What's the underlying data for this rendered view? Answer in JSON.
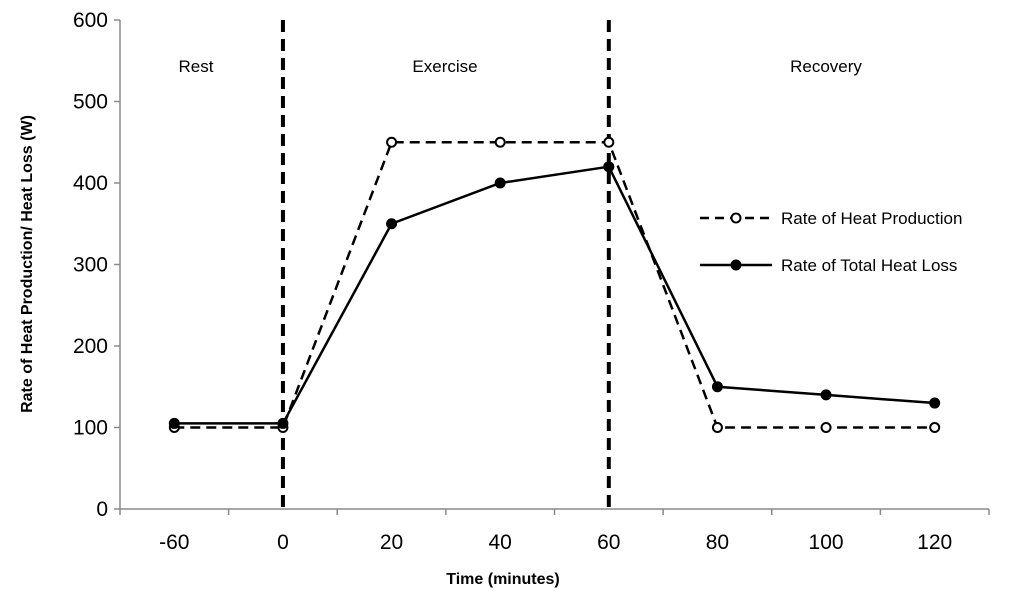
{
  "chart_data": {
    "type": "line",
    "xlabel": "Time (minutes)",
    "ylabel": "Rate of Heat Production/ Heat Loss (W)",
    "categories": [
      "-60",
      "0",
      "20",
      "40",
      "60",
      "80",
      "100",
      "120"
    ],
    "yticks": [
      "0",
      "100",
      "200",
      "300",
      "400",
      "500",
      "600"
    ],
    "ylim": [
      0,
      600
    ],
    "grid": false,
    "legend_position": "right",
    "series": [
      {
        "name": "Rate of Heat Production",
        "style": "dashed",
        "marker": "open-circle",
        "values": [
          100,
          100,
          450,
          450,
          450,
          100,
          100,
          100
        ]
      },
      {
        "name": "Rate of Total Heat Loss",
        "style": "solid",
        "marker": "filled-circle",
        "values": [
          105,
          105,
          350,
          400,
          420,
          150,
          140,
          130
        ]
      }
    ],
    "phase_dividers_at": [
      "0",
      "60"
    ],
    "phases": [
      "Rest",
      "Exercise",
      "Recovery"
    ],
    "colors": {
      "line": "#000000",
      "background": "#ffffff"
    }
  }
}
